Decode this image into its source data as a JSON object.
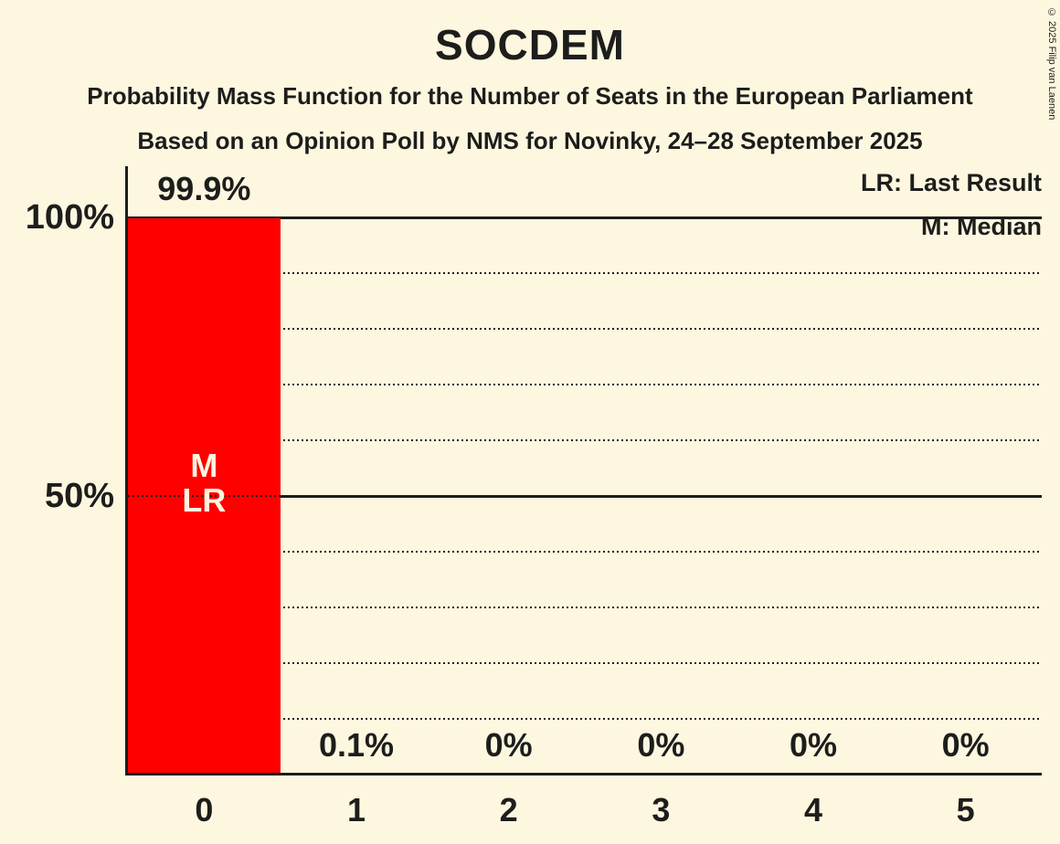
{
  "copyright": "© 2025 Filip van Laenen",
  "colors": {
    "background": "#FDF7E0",
    "bar": "#FF0000",
    "text": "#1D1D1B",
    "grid": "#1D1D1B",
    "bar_annotation_text": "#FDF7E0"
  },
  "chart_data": {
    "type": "bar",
    "title": "SOCDEM",
    "subtitle1": "Probability Mass Function for the Number of Seats in the European Parliament",
    "subtitle2": "Based on an Opinion Poll by NMS for Novinky, 24–28 September 2025",
    "categories": [
      "0",
      "1",
      "2",
      "3",
      "4",
      "5"
    ],
    "values": [
      99.9,
      0.1,
      0,
      0,
      0,
      0
    ],
    "value_labels": [
      "99.9%",
      "0.1%",
      "0%",
      "0%",
      "0%",
      "0%"
    ],
    "ylim": [
      0,
      100
    ],
    "yticks": [
      {
        "value": 100,
        "label": "100%"
      },
      {
        "value": 50,
        "label": "50%"
      }
    ],
    "gridlines": {
      "dotted_every": 10,
      "solid_at": [
        50,
        100
      ]
    },
    "annotations": [
      {
        "category": "0",
        "lines": [
          "M",
          "LR"
        ]
      }
    ],
    "legend": [
      "LR: Last Result",
      "M: Median"
    ]
  }
}
